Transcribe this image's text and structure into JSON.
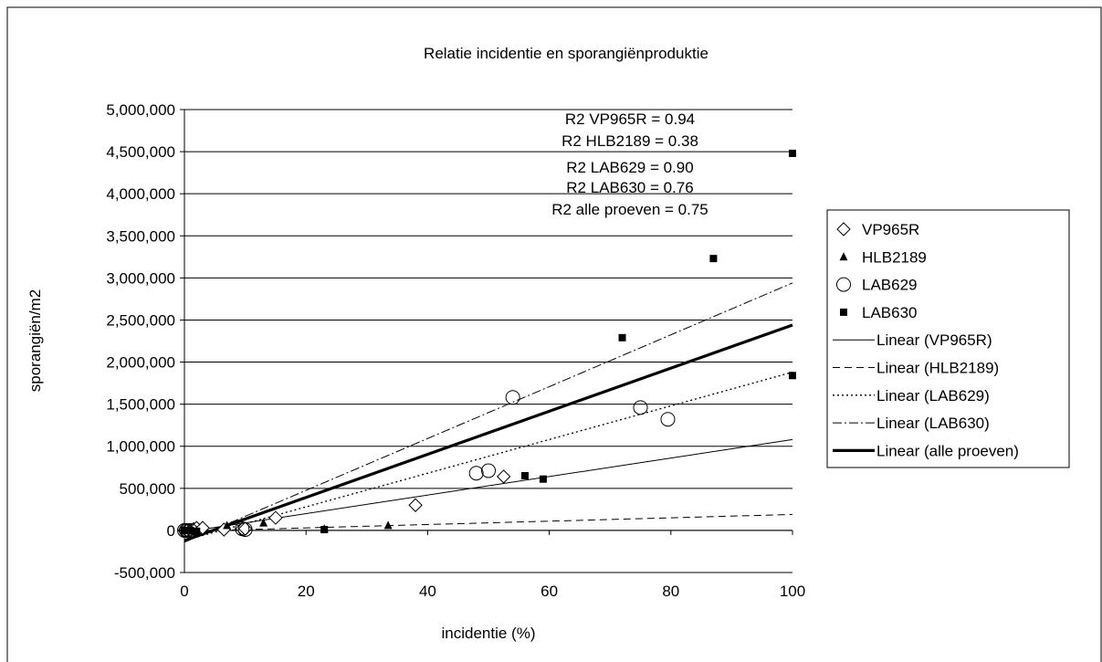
{
  "chart_data": {
    "type": "scatter",
    "title": "Relatie incidentie en sporangiënproduktie",
    "xlabel": "incidentie (%)",
    "ylabel": "sporangiën/m2",
    "xlim": [
      0,
      100
    ],
    "ylim": [
      -500000,
      5000000
    ],
    "x_ticks": [
      0,
      20,
      40,
      60,
      80,
      100
    ],
    "y_ticks": [
      -500000,
      0,
      500000,
      1000000,
      1500000,
      2000000,
      2500000,
      3000000,
      3500000,
      4000000,
      4500000,
      5000000
    ],
    "x_tick_labels": [
      "0",
      "20",
      "40",
      "60",
      "80",
      "100"
    ],
    "y_tick_labels": [
      "-500,000",
      "0",
      "500,000",
      "1,000,000",
      "1,500,000",
      "2,000,000",
      "2,500,000",
      "3,000,000",
      "3,500,000",
      "4,000,000",
      "4,500,000",
      "5,000,000"
    ],
    "grid": "horizontal",
    "legend_position": "right",
    "annotations": [
      "R2 VP965R = 0.94",
      "R2 HLB2189 = 0.38",
      "R2 LAB629 = 0.90",
      "R2 LAB630 = 0.76",
      "R2 alle proeven = 0.75"
    ],
    "series": [
      {
        "name": "VP965R",
        "marker": "diamond",
        "points": [
          [
            0,
            0
          ],
          [
            0.3,
            0
          ],
          [
            1,
            0
          ],
          [
            1.5,
            15000
          ],
          [
            2,
            30000
          ],
          [
            3,
            30000
          ],
          [
            6.5,
            10000
          ],
          [
            9.5,
            20000
          ],
          [
            10,
            20000
          ],
          [
            15,
            150000
          ],
          [
            38,
            300000
          ],
          [
            52.5,
            640000
          ]
        ]
      },
      {
        "name": "HLB2189",
        "marker": "triangle",
        "points": [
          [
            0,
            0
          ],
          [
            0.5,
            0
          ],
          [
            2,
            0
          ],
          [
            7,
            60000
          ],
          [
            13,
            90000
          ],
          [
            23,
            20000
          ],
          [
            33.5,
            60000
          ]
        ]
      },
      {
        "name": "LAB629",
        "marker": "circle",
        "points": [
          [
            0,
            0
          ],
          [
            0.3,
            0
          ],
          [
            1,
            0
          ],
          [
            9.5,
            20000
          ],
          [
            10,
            10000
          ],
          [
            48,
            680000
          ],
          [
            50,
            710000
          ],
          [
            54,
            1580000
          ],
          [
            75,
            1460000
          ],
          [
            79.5,
            1320000
          ]
        ]
      },
      {
        "name": "LAB630",
        "marker": "square",
        "points": [
          [
            0,
            0
          ],
          [
            1,
            0
          ],
          [
            2,
            -10000
          ],
          [
            23,
            10000
          ],
          [
            56,
            650000
          ],
          [
            59,
            610000
          ],
          [
            72,
            2290000
          ],
          [
            87,
            3230000
          ],
          [
            100,
            4480000
          ],
          [
            100,
            1840000
          ]
        ]
      }
    ],
    "trendlines": [
      {
        "name": "Linear (VP965R)",
        "style": "solid-thin",
        "from": [
          0,
          -20000
        ],
        "to": [
          100,
          1080000
        ]
      },
      {
        "name": "Linear (HLB2189)",
        "style": "dashed",
        "from": [
          0,
          -10000
        ],
        "to": [
          100,
          190000
        ]
      },
      {
        "name": "Linear (LAB629)",
        "style": "dotted",
        "from": [
          0,
          -120000
        ],
        "to": [
          100,
          1880000
        ]
      },
      {
        "name": "Linear (LAB630)",
        "style": "dash-dot",
        "from": [
          0,
          -140000
        ],
        "to": [
          100,
          2940000
        ]
      },
      {
        "name": "Linear (alle proeven)",
        "style": "solid-thick",
        "from": [
          0,
          -120000
        ],
        "to": [
          100,
          2440000
        ]
      }
    ]
  }
}
